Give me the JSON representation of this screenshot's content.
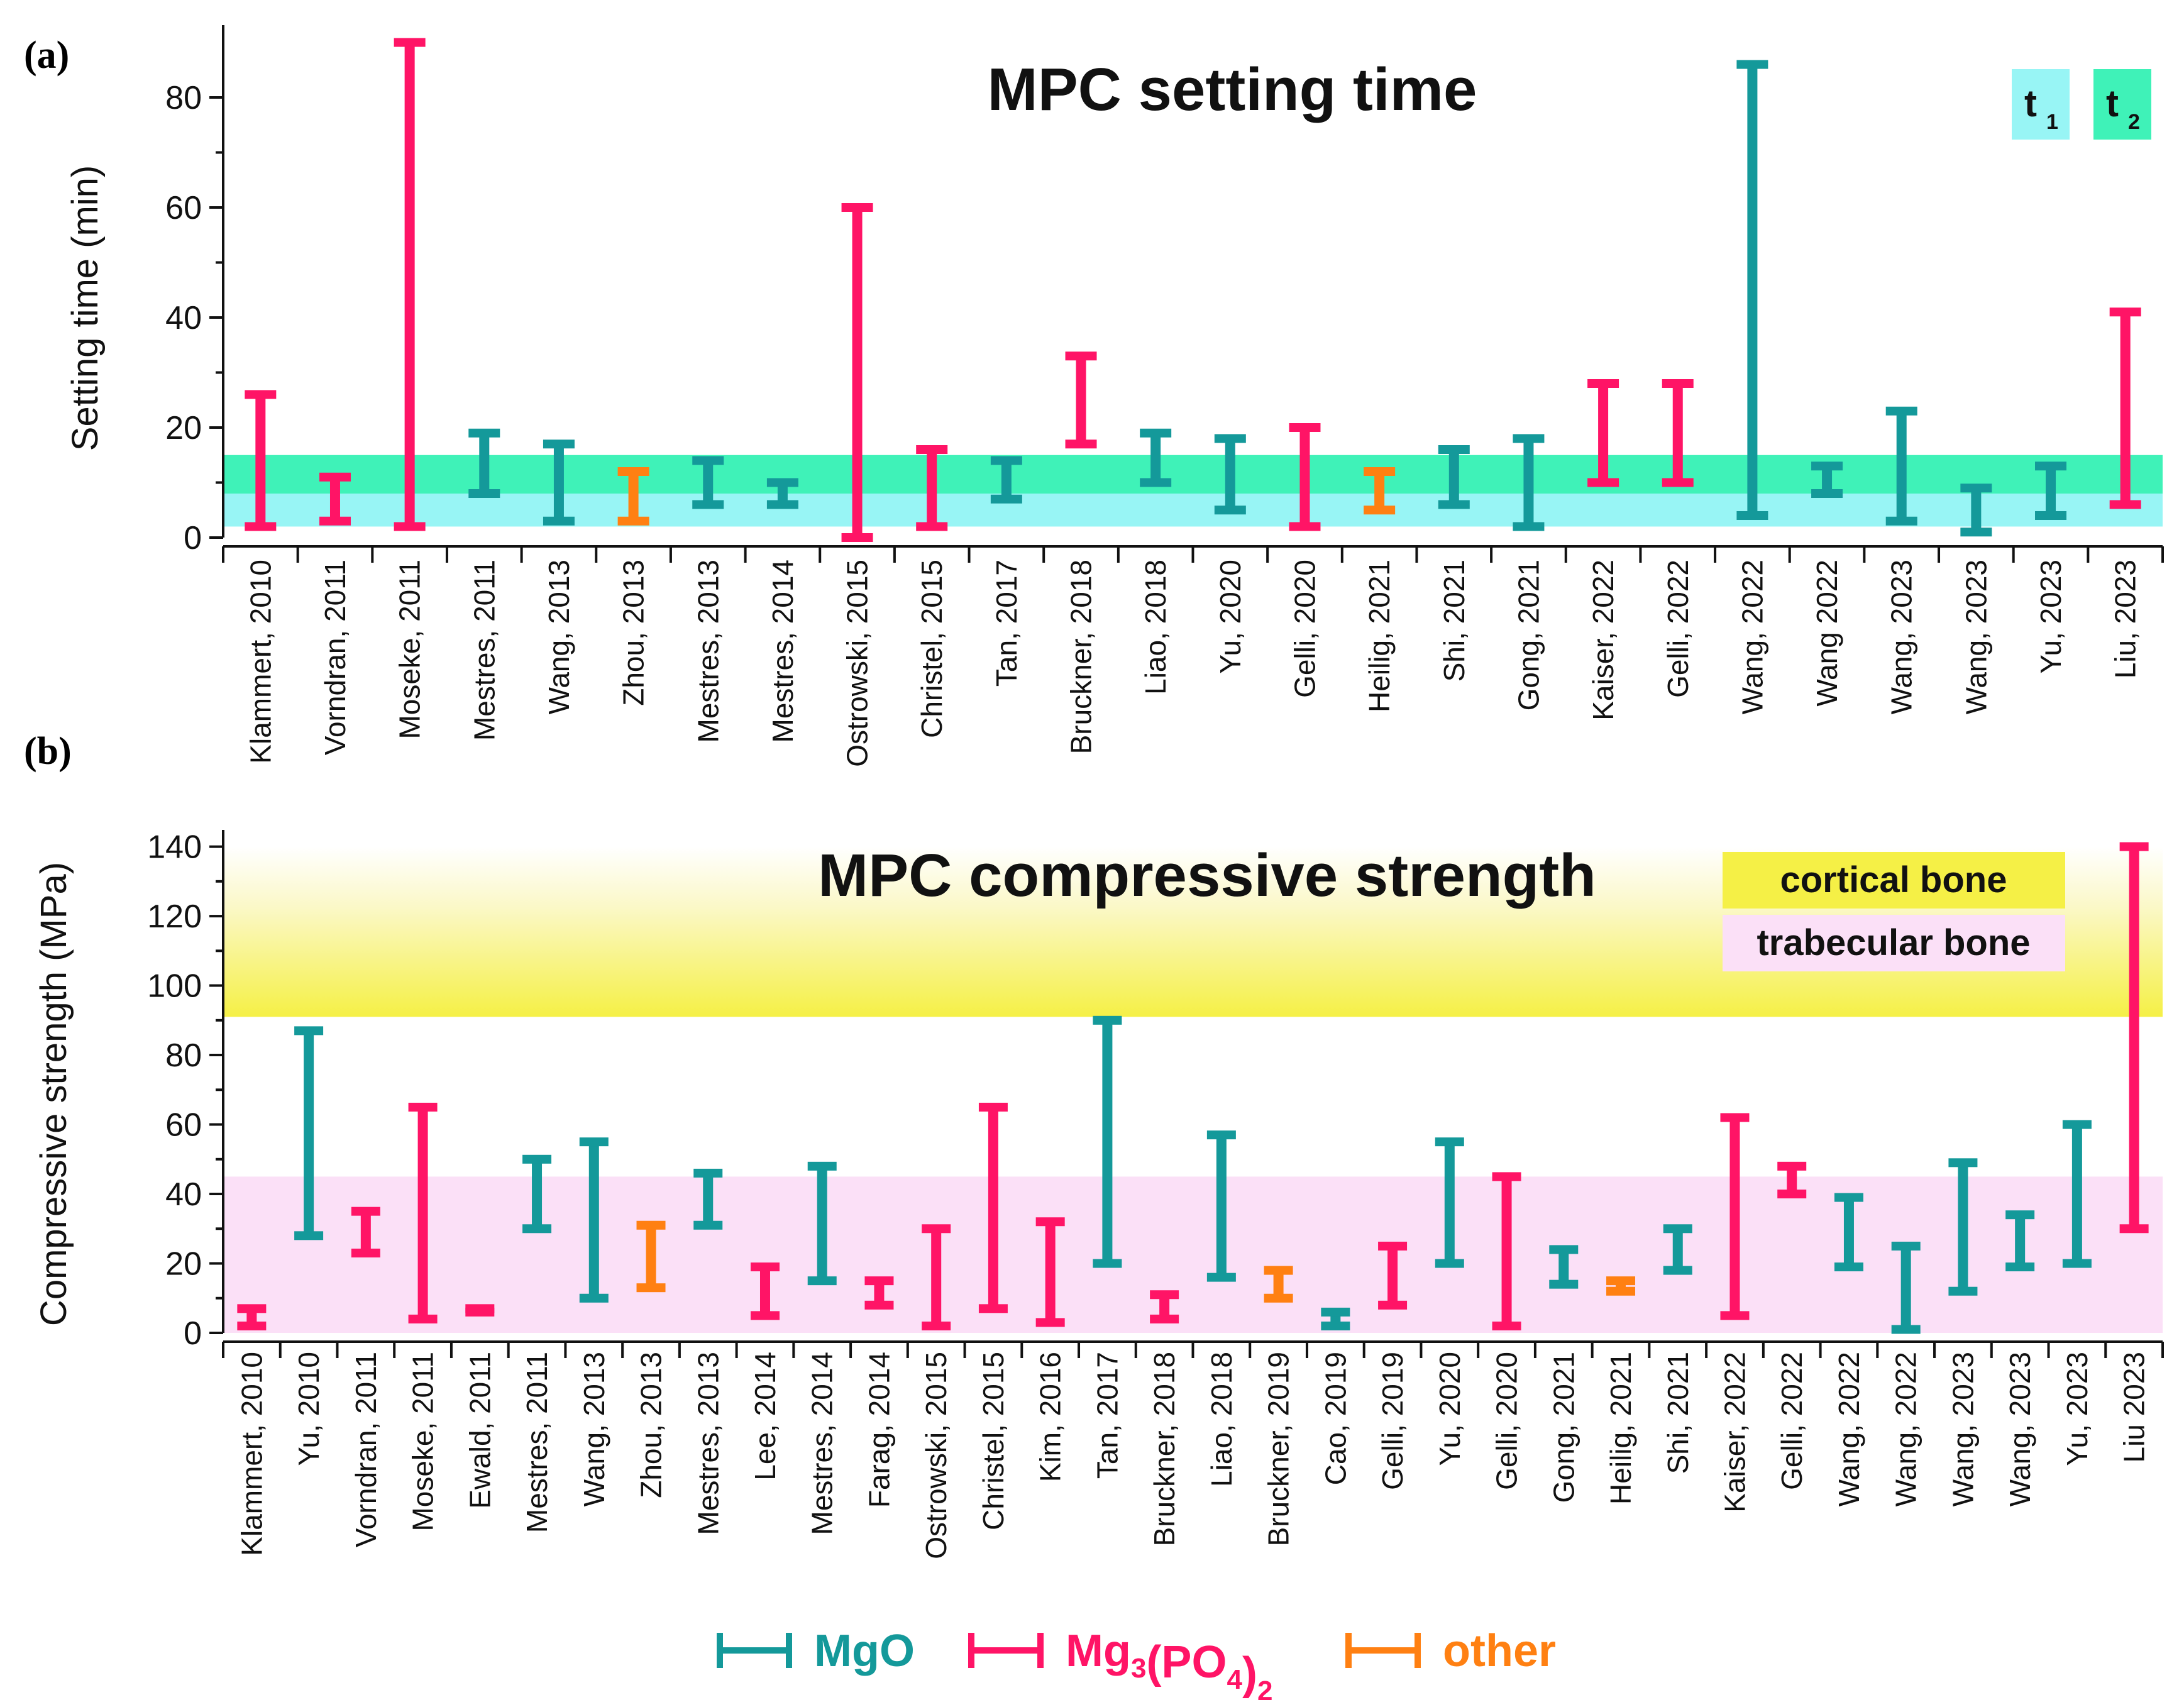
{
  "colors": {
    "MgO": "#14999a",
    "Mg3(PO4)2": "#ff1466",
    "other": "#ff8012",
    "t1_band": "#98f5f5",
    "t2_band": "#3ff2b8",
    "cortical_band": "#f5f046",
    "trabecular_band": "#fbe0f7"
  },
  "chart_data": [
    {
      "type": "floating-range",
      "panel_label": "(a)",
      "title": "MPC setting time",
      "xlabel": "",
      "ylabel": "Setting time (min)",
      "ylim": [
        0,
        92
      ],
      "yticks": [
        0,
        20,
        40,
        60,
        80
      ],
      "grid": false,
      "bands": [
        {
          "name": "t1",
          "range": [
            2,
            9
          ]
        },
        {
          "name": "t2",
          "range": [
            8,
            15
          ]
        }
      ],
      "legend": {
        "placement": "top-right",
        "items": [
          {
            "label": "t",
            "sub": "1",
            "color_key": "t1_band"
          },
          {
            "label": "t",
            "sub": "2",
            "color_key": "t2_band"
          }
        ]
      },
      "categories": [
        "Klammert, 2010",
        "Vorndran, 2011",
        "Moseke, 2011",
        "Mestres, 2011",
        "Wang, 2013",
        "Zhou, 2013",
        "Mestres, 2013",
        "Mestres, 2014",
        "Ostrowski, 2015",
        "Christel, 2015",
        "Tan, 2017",
        "Bruckner, 2018",
        "Liao, 2018",
        "Yu, 2020",
        "Gelli, 2020",
        "Heilig, 2021",
        "Shi, 2021",
        "Gong, 2021",
        "Kaiser, 2022",
        "Gelli, 2022",
        "Wang, 2022",
        "Wang 2022",
        "Wang, 2023",
        "Wang, 2023",
        "Yu, 2023",
        "Liu, 2023"
      ],
      "series": [
        {
          "name": "MgO",
          "ranges": [
            null,
            null,
            null,
            [
              8,
              19
            ],
            [
              3,
              17
            ],
            null,
            [
              6,
              14
            ],
            [
              6,
              10
            ],
            null,
            null,
            [
              7,
              14
            ],
            null,
            [
              10,
              19
            ],
            [
              5,
              18
            ],
            null,
            null,
            [
              6,
              16
            ],
            [
              2,
              18
            ],
            null,
            null,
            [
              4,
              86
            ],
            [
              8,
              13
            ],
            [
              3,
              23
            ],
            [
              1,
              9
            ],
            [
              4,
              13
            ],
            null
          ]
        },
        {
          "name": "Mg3(PO4)2",
          "ranges": [
            [
              2,
              26
            ],
            [
              3,
              11
            ],
            [
              2,
              90
            ],
            null,
            null,
            null,
            null,
            null,
            [
              0,
              60
            ],
            [
              2,
              16
            ],
            null,
            [
              17,
              33
            ],
            null,
            null,
            [
              2,
              20
            ],
            null,
            null,
            null,
            [
              10,
              28
            ],
            [
              10,
              28
            ],
            null,
            null,
            null,
            null,
            null,
            [
              6,
              41
            ]
          ]
        },
        {
          "name": "other",
          "ranges": [
            null,
            null,
            null,
            null,
            null,
            [
              3,
              12
            ],
            null,
            null,
            null,
            null,
            null,
            null,
            null,
            null,
            null,
            [
              5,
              12
            ],
            null,
            null,
            null,
            null,
            null,
            null,
            null,
            null,
            null,
            null
          ]
        }
      ]
    },
    {
      "type": "floating-range",
      "panel_label": "(b)",
      "title": "MPC compressive strength",
      "xlabel": "",
      "ylabel": "Compressive strength (MPa)",
      "ylim": [
        0,
        143
      ],
      "yticks": [
        0,
        20,
        40,
        60,
        80,
        100,
        120,
        140
      ],
      "grid": false,
      "bands": [
        {
          "name": "cortical bone",
          "range": [
            91,
            140
          ]
        },
        {
          "name": "trabecular bone",
          "range": [
            0,
            45
          ]
        }
      ],
      "legend": {
        "placement": "top-right",
        "items": [
          {
            "label": "cortical bone",
            "color_key": "cortical_band"
          },
          {
            "label": "trabecular bone",
            "color_key": "trabecular_band"
          }
        ]
      },
      "categories": [
        "Klammert, 2010",
        "Yu, 2010",
        "Vorndran, 2011",
        "Moseke, 2011",
        "Ewald, 2011",
        "Mestres, 2011",
        "Wang, 2013",
        "Zhou, 2013",
        "Mestres, 2013",
        "Lee, 2014",
        "Mestres, 2014",
        "Farag, 2014",
        "Ostrowski, 2015",
        "Christel, 2015",
        "Kim, 2016",
        "Tan, 2017",
        "Bruckner, 2018",
        "Liao, 2018",
        "Bruckner, 2019",
        "Cao, 2019",
        "Gelli, 2019",
        "Yu, 2020",
        "Gelli, 2020",
        "Gong, 2021",
        "Heilig, 2021",
        "Shi, 2021",
        "Kaiser, 2022",
        "Gelli, 2022",
        "Wang, 2022",
        "Wang, 2022",
        "Wang, 2023",
        "Wang, 2023",
        "Yu, 2023",
        "Liu 2023"
      ],
      "series": [
        {
          "name": "MgO",
          "ranges": [
            null,
            [
              28,
              87
            ],
            null,
            null,
            null,
            [
              30,
              50
            ],
            [
              10,
              55
            ],
            null,
            [
              31,
              46
            ],
            null,
            [
              15,
              48
            ],
            null,
            null,
            null,
            null,
            [
              20,
              90
            ],
            null,
            [
              16,
              57
            ],
            null,
            [
              2,
              6
            ],
            null,
            [
              20,
              55
            ],
            null,
            [
              14,
              24
            ],
            null,
            [
              18,
              30
            ],
            null,
            null,
            [
              19,
              39
            ],
            [
              1,
              25
            ],
            [
              12,
              49
            ],
            [
              19,
              34
            ],
            [
              20,
              60
            ],
            null
          ]
        },
        {
          "name": "Mg3(PO4)2",
          "ranges": [
            [
              2,
              7
            ],
            null,
            [
              23,
              35
            ],
            [
              4,
              65
            ],
            [
              6,
              7
            ],
            null,
            null,
            null,
            null,
            [
              5,
              19
            ],
            null,
            [
              8,
              15
            ],
            [
              2,
              30
            ],
            [
              7,
              65
            ],
            [
              3,
              32
            ],
            null,
            [
              4,
              11
            ],
            null,
            null,
            null,
            [
              8,
              25
            ],
            null,
            [
              2,
              45
            ],
            null,
            null,
            null,
            [
              5,
              62
            ],
            [
              40,
              48
            ],
            null,
            null,
            null,
            null,
            null,
            [
              30,
              140
            ]
          ]
        },
        {
          "name": "other",
          "ranges": [
            null,
            null,
            null,
            null,
            null,
            null,
            null,
            [
              13,
              31
            ],
            null,
            null,
            null,
            null,
            null,
            null,
            null,
            null,
            null,
            null,
            [
              10,
              18
            ],
            null,
            null,
            null,
            null,
            null,
            [
              12,
              15
            ],
            null,
            null,
            null,
            null,
            null,
            null,
            null,
            null,
            null
          ]
        }
      ]
    }
  ],
  "bottom_legend": [
    {
      "label": "MgO",
      "color_key": "MgO"
    },
    {
      "label": "Mg",
      "sub1": "3",
      "mid": "(PO",
      "sub2": "4",
      "tail": ")",
      "sub3": "2",
      "color_key": "Mg3(PO4)2"
    },
    {
      "label": "other",
      "color_key": "other"
    }
  ]
}
